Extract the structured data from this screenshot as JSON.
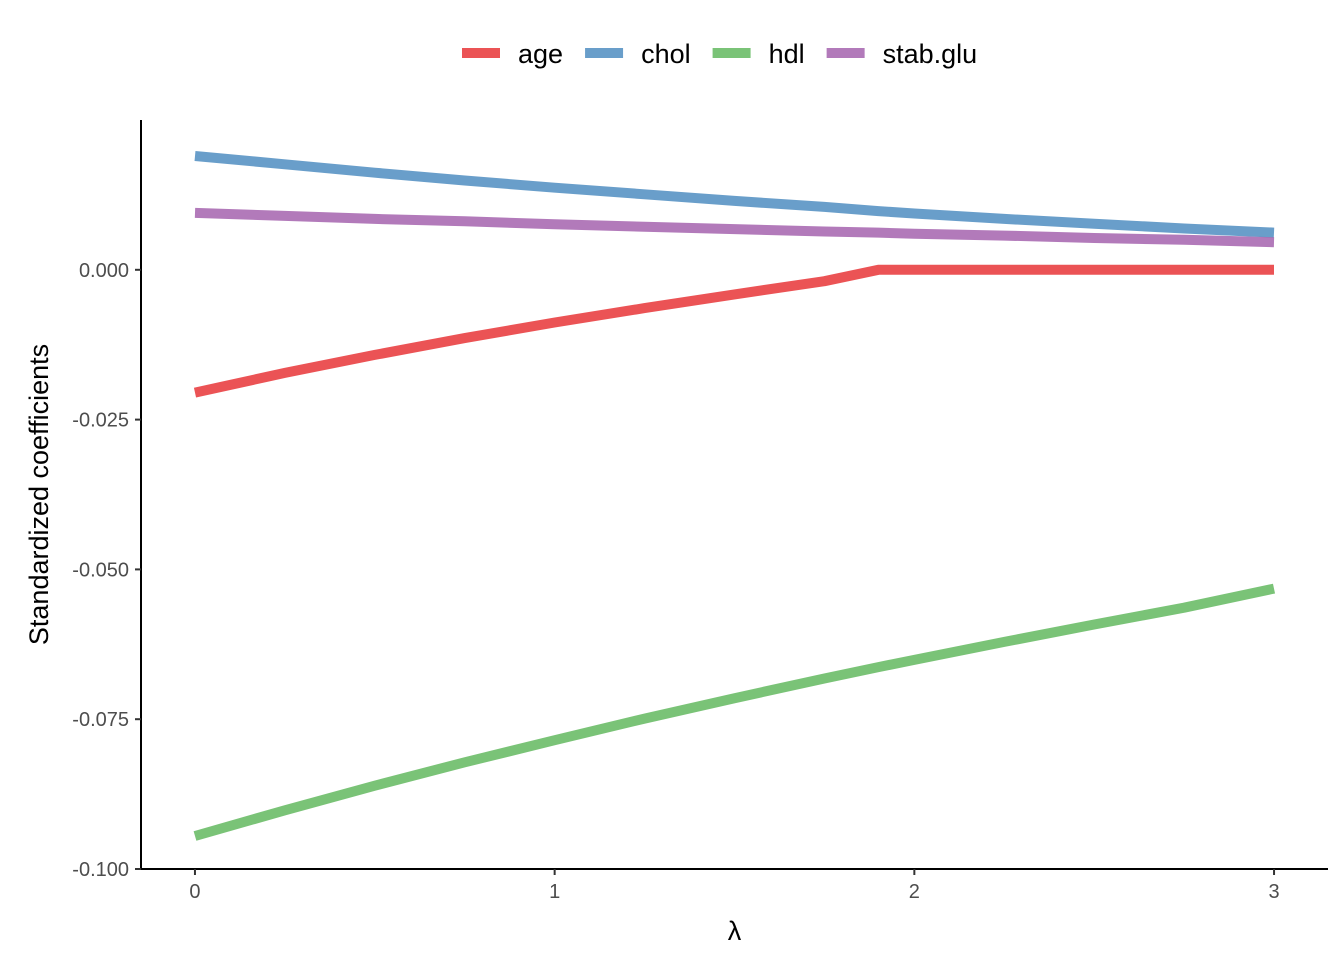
{
  "chart_data": {
    "type": "line",
    "xlabel": "λ",
    "ylabel": "Standardized coefficients",
    "xlim": [
      -0.15,
      3.15
    ],
    "ylim": [
      -0.1,
      0.025
    ],
    "x_ticks": [
      0,
      1,
      2,
      3
    ],
    "x_tick_labels": [
      "0",
      "1",
      "2",
      "3"
    ],
    "y_ticks": [
      0.0,
      -0.025,
      -0.05,
      -0.075,
      -0.1
    ],
    "y_tick_labels": [
      "0.000",
      "-0.025",
      "-0.050",
      "-0.075",
      "-0.100"
    ],
    "grid": false,
    "legend_position": "top",
    "x": [
      0,
      0.25,
      0.5,
      0.75,
      1.0,
      1.25,
      1.5,
      1.75,
      1.9,
      2.0,
      2.25,
      2.5,
      2.75,
      3.0
    ],
    "series": [
      {
        "name": "age",
        "color": "#E41A1C",
        "values": [
          -0.0205,
          -0.0172,
          -0.0142,
          -0.0114,
          -0.0088,
          -0.0064,
          -0.0041,
          -0.0019,
          0.0,
          0.0,
          0.0,
          0.0,
          0.0,
          0.0
        ]
      },
      {
        "name": "chol",
        "color": "#377EB8",
        "values": [
          0.019,
          0.0176,
          0.0162,
          0.0149,
          0.0137,
          0.0126,
          0.0115,
          0.0105,
          0.0098,
          0.0094,
          0.0085,
          0.0077,
          0.0069,
          0.0062
        ]
      },
      {
        "name": "hdl",
        "color": "#4DAF4A",
        "values": [
          -0.0945,
          -0.0902,
          -0.0861,
          -0.0822,
          -0.0785,
          -0.0749,
          -0.0715,
          -0.0682,
          -0.0663,
          -0.0651,
          -0.0621,
          -0.0592,
          -0.0564,
          -0.0532
        ]
      },
      {
        "name": "stab.glu",
        "color": "#984EA3",
        "values": [
          0.0095,
          0.009,
          0.0085,
          0.0081,
          0.0076,
          0.0072,
          0.0068,
          0.0064,
          0.0062,
          0.006,
          0.0057,
          0.0053,
          0.005,
          0.0046
        ]
      }
    ]
  }
}
